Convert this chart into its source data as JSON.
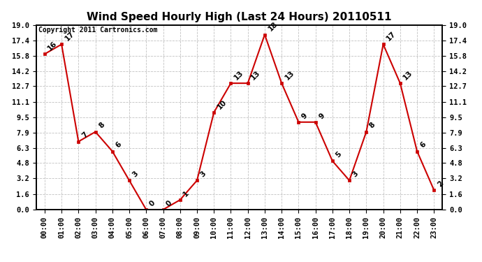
{
  "title": "Wind Speed Hourly High (Last 24 Hours) 20110511",
  "copyright": "Copyright 2011 Cartronics.com",
  "hours": [
    "00:00",
    "01:00",
    "02:00",
    "03:00",
    "04:00",
    "05:00",
    "06:00",
    "07:00",
    "08:00",
    "09:00",
    "10:00",
    "11:00",
    "12:00",
    "13:00",
    "14:00",
    "15:00",
    "16:00",
    "17:00",
    "18:00",
    "19:00",
    "20:00",
    "21:00",
    "22:00",
    "23:00"
  ],
  "values": [
    16,
    17,
    7,
    8,
    6,
    3,
    0,
    0,
    1,
    3,
    10,
    13,
    13,
    18,
    13,
    9,
    9,
    5,
    3,
    8,
    17,
    13,
    6,
    2
  ],
  "line_color": "#cc0000",
  "marker_color": "#cc0000",
  "bg_color": "#ffffff",
  "grid_color": "#bbbbbb",
  "ymin": 0.0,
  "ymax": 19.0,
  "ytick_values": [
    0.0,
    1.6,
    3.2,
    4.8,
    6.3,
    7.9,
    9.5,
    11.1,
    12.7,
    14.2,
    15.8,
    17.4,
    19.0
  ],
  "ytick_labels": [
    "0.0",
    "1.6",
    "3.2",
    "4.8",
    "6.3",
    "7.9",
    "9.5",
    "11.1",
    "12.7",
    "14.2",
    "15.8",
    "17.4",
    "19.0"
  ],
  "title_fontsize": 11,
  "label_fontsize": 7.5,
  "annotation_fontsize": 7.5,
  "copyright_fontsize": 7
}
